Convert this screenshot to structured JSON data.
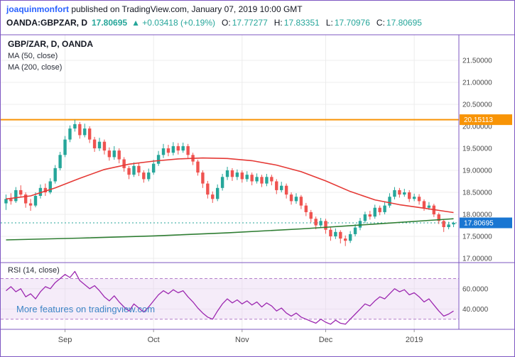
{
  "header": {
    "author": "joaquinmonfort",
    "published": " published on TradingView.com, January 07, 2019 10:00 GMT",
    "symbol": "OANDA:GBPZAR, D",
    "last": "17.80695",
    "change": "▲ +0.03418 (+0.19%)",
    "o_label": "O:",
    "o": "17.77277",
    "h_label": "H:",
    "h": "17.83351",
    "l_label": "L:",
    "l": "17.70976",
    "c_label": "C:",
    "c": "17.80695"
  },
  "legend": {
    "title": "GBP/ZAR, D, OANDA",
    "ma50": "MA (50, close)",
    "ma200": "MA (200, close)",
    "rsi": "RSI (14, close)"
  },
  "watermark": "More features on tradingview.com",
  "colors": {
    "up": "#26a69a",
    "down": "#ef5350",
    "ma50": "#e53935",
    "ma200": "#2e7d32",
    "hline": "#f89406",
    "last_label": "#1976d2",
    "rsi": "#9c27b0",
    "rsi_band": "#e8d5f2",
    "rsi_band_border": "#b17cc9",
    "frame": "#7e57c2",
    "grid": "#ececec",
    "axis_text": "#4a4a4a",
    "author_link": "#2962ff",
    "value_green": "#26a69a",
    "watermark_blue": "#3d85c6"
  },
  "chart_data": {
    "type": "candlestick",
    "title": "GBP/ZAR, D, OANDA",
    "interval": "D",
    "ylim": [
      16.92,
      22.08
    ],
    "y_ticks": [
      21.5,
      21.0,
      20.5,
      20.0,
      19.5,
      19.0,
      18.5,
      18.0,
      17.5,
      17.0
    ],
    "x_ticks": [
      {
        "index": 12,
        "label": "Sep"
      },
      {
        "index": 30,
        "label": "Oct"
      },
      {
        "index": 48,
        "label": "Nov"
      },
      {
        "index": 65,
        "label": "Dec"
      },
      {
        "index": 83,
        "label": "2019"
      }
    ],
    "hline": 20.15113,
    "last_price": 17.80695,
    "candles": [
      [
        18.25,
        18.45,
        18.1,
        18.35
      ],
      [
        18.35,
        18.48,
        18.22,
        18.3
      ],
      [
        18.3,
        18.62,
        18.26,
        18.55
      ],
      [
        18.55,
        18.66,
        18.38,
        18.45
      ],
      [
        18.45,
        18.5,
        18.15,
        18.25
      ],
      [
        18.25,
        18.35,
        18.08,
        18.2
      ],
      [
        18.2,
        18.5,
        18.16,
        18.42
      ],
      [
        18.42,
        18.68,
        18.36,
        18.6
      ],
      [
        18.6,
        18.7,
        18.42,
        18.5
      ],
      [
        18.5,
        18.82,
        18.46,
        18.75
      ],
      [
        18.75,
        19.12,
        18.7,
        19.05
      ],
      [
        19.05,
        19.42,
        19.0,
        19.35
      ],
      [
        19.35,
        19.78,
        19.3,
        19.7
      ],
      [
        19.7,
        20.02,
        19.64,
        19.95
      ],
      [
        19.95,
        20.15,
        19.88,
        20.05
      ],
      [
        20.05,
        20.1,
        19.72,
        19.8
      ],
      [
        19.8,
        20.06,
        19.75,
        19.95
      ],
      [
        19.95,
        20.0,
        19.62,
        19.7
      ],
      [
        19.7,
        19.76,
        19.42,
        19.5
      ],
      [
        19.5,
        19.74,
        19.44,
        19.65
      ],
      [
        19.65,
        19.7,
        19.36,
        19.45
      ],
      [
        19.45,
        19.52,
        19.22,
        19.3
      ],
      [
        19.3,
        19.55,
        19.24,
        19.45
      ],
      [
        19.45,
        19.5,
        19.16,
        19.25
      ],
      [
        19.25,
        19.3,
        18.97,
        19.05
      ],
      [
        19.05,
        19.1,
        18.8,
        18.9
      ],
      [
        18.9,
        19.18,
        18.85,
        19.1
      ],
      [
        19.1,
        19.16,
        18.87,
        18.95
      ],
      [
        18.95,
        19.0,
        18.72,
        18.8
      ],
      [
        18.8,
        19.04,
        18.75,
        18.95
      ],
      [
        18.95,
        19.24,
        18.9,
        19.15
      ],
      [
        19.15,
        19.44,
        19.1,
        19.35
      ],
      [
        19.35,
        19.6,
        19.28,
        19.5
      ],
      [
        19.5,
        19.58,
        19.32,
        19.4
      ],
      [
        19.4,
        19.64,
        19.34,
        19.55
      ],
      [
        19.55,
        19.62,
        19.36,
        19.45
      ],
      [
        19.45,
        19.63,
        19.4,
        19.55
      ],
      [
        19.55,
        19.6,
        19.26,
        19.35
      ],
      [
        19.35,
        19.4,
        19.12,
        19.2
      ],
      [
        19.2,
        19.24,
        18.88,
        18.95
      ],
      [
        18.95,
        19.0,
        18.6,
        18.7
      ],
      [
        18.7,
        18.76,
        18.36,
        18.45
      ],
      [
        18.45,
        18.52,
        18.26,
        18.35
      ],
      [
        18.35,
        18.68,
        18.3,
        18.6
      ],
      [
        18.6,
        18.92,
        18.54,
        18.85
      ],
      [
        18.85,
        19.08,
        18.78,
        19.0
      ],
      [
        19.0,
        19.05,
        18.76,
        18.85
      ],
      [
        18.85,
        19.02,
        18.78,
        18.95
      ],
      [
        18.95,
        19.0,
        18.72,
        18.8
      ],
      [
        18.8,
        18.98,
        18.74,
        18.9
      ],
      [
        18.9,
        18.95,
        18.66,
        18.75
      ],
      [
        18.75,
        18.93,
        18.7,
        18.85
      ],
      [
        18.85,
        18.9,
        18.62,
        18.7
      ],
      [
        18.7,
        18.92,
        18.64,
        18.85
      ],
      [
        18.85,
        18.9,
        18.66,
        18.75
      ],
      [
        18.75,
        18.8,
        18.46,
        18.55
      ],
      [
        18.55,
        18.74,
        18.5,
        18.65
      ],
      [
        18.65,
        18.7,
        18.36,
        18.45
      ],
      [
        18.45,
        18.5,
        18.22,
        18.3
      ],
      [
        18.3,
        18.48,
        18.24,
        18.4
      ],
      [
        18.4,
        18.44,
        18.12,
        18.2
      ],
      [
        18.2,
        18.26,
        17.96,
        18.05
      ],
      [
        18.05,
        18.1,
        17.82,
        17.9
      ],
      [
        17.9,
        17.95,
        17.66,
        17.75
      ],
      [
        17.75,
        17.92,
        17.7,
        17.85
      ],
      [
        17.85,
        17.9,
        17.56,
        17.65
      ],
      [
        17.65,
        17.7,
        17.4,
        17.5
      ],
      [
        17.5,
        17.68,
        17.44,
        17.6
      ],
      [
        17.6,
        17.64,
        17.34,
        17.45
      ],
      [
        17.45,
        17.52,
        17.28,
        17.4
      ],
      [
        17.4,
        17.62,
        17.35,
        17.55
      ],
      [
        17.55,
        17.78,
        17.5,
        17.7
      ],
      [
        17.7,
        17.92,
        17.64,
        17.85
      ],
      [
        17.85,
        18.06,
        17.8,
        18.0
      ],
      [
        18.0,
        18.08,
        17.88,
        17.95
      ],
      [
        17.95,
        18.22,
        17.9,
        18.15
      ],
      [
        18.15,
        18.2,
        17.98,
        18.05
      ],
      [
        18.05,
        18.28,
        18.0,
        18.2
      ],
      [
        18.2,
        18.48,
        18.15,
        18.4
      ],
      [
        18.4,
        18.62,
        18.34,
        18.55
      ],
      [
        18.55,
        18.6,
        18.38,
        18.45
      ],
      [
        18.45,
        18.58,
        18.4,
        18.5
      ],
      [
        18.5,
        18.55,
        18.28,
        18.35
      ],
      [
        18.35,
        18.47,
        18.3,
        18.4
      ],
      [
        18.4,
        18.46,
        18.22,
        18.3
      ],
      [
        18.3,
        18.34,
        18.08,
        18.15
      ],
      [
        18.15,
        18.28,
        18.1,
        18.2
      ],
      [
        18.2,
        18.24,
        17.94,
        18.0
      ],
      [
        18.0,
        18.04,
        17.78,
        17.85
      ],
      [
        17.85,
        17.88,
        17.6,
        17.71
      ],
      [
        17.71,
        17.83,
        17.66,
        17.77
      ],
      [
        17.77277,
        17.83351,
        17.70976,
        17.80695
      ]
    ],
    "ma50": [
      [
        0,
        18.35
      ],
      [
        5,
        18.42
      ],
      [
        10,
        18.6
      ],
      [
        15,
        18.82
      ],
      [
        20,
        19.02
      ],
      [
        25,
        19.14
      ],
      [
        30,
        19.21
      ],
      [
        35,
        19.26
      ],
      [
        40,
        19.28
      ],
      [
        45,
        19.27
      ],
      [
        50,
        19.22
      ],
      [
        55,
        19.12
      ],
      [
        60,
        18.97
      ],
      [
        65,
        18.76
      ],
      [
        70,
        18.52
      ],
      [
        75,
        18.33
      ],
      [
        80,
        18.22
      ],
      [
        85,
        18.14
      ],
      [
        91,
        18.04
      ]
    ],
    "ma200": [
      [
        0,
        17.42
      ],
      [
        15,
        17.46
      ],
      [
        30,
        17.51
      ],
      [
        45,
        17.58
      ],
      [
        60,
        17.67
      ],
      [
        75,
        17.78
      ],
      [
        91,
        17.9
      ]
    ],
    "rsi": {
      "ylim": [
        20,
        85
      ],
      "ticks": [
        60,
        40
      ],
      "band": [
        30,
        70
      ],
      "values": [
        58,
        62,
        57,
        60,
        52,
        55,
        50,
        57,
        62,
        60,
        66,
        70,
        74,
        71,
        77,
        68,
        64,
        60,
        63,
        58,
        52,
        48,
        53,
        47,
        42,
        38,
        45,
        41,
        37,
        42,
        48,
        54,
        58,
        55,
        59,
        56,
        58,
        52,
        47,
        41,
        36,
        32,
        30,
        38,
        45,
        50,
        46,
        49,
        45,
        48,
        44,
        47,
        42,
        46,
        43,
        38,
        41,
        36,
        33,
        36,
        32,
        30,
        28,
        26,
        30,
        27,
        25,
        29,
        26,
        25,
        30,
        35,
        40,
        45,
        43,
        48,
        52,
        50,
        55,
        60,
        57,
        59,
        54,
        56,
        52,
        47,
        50,
        44,
        38,
        33,
        35,
        38
      ]
    }
  }
}
